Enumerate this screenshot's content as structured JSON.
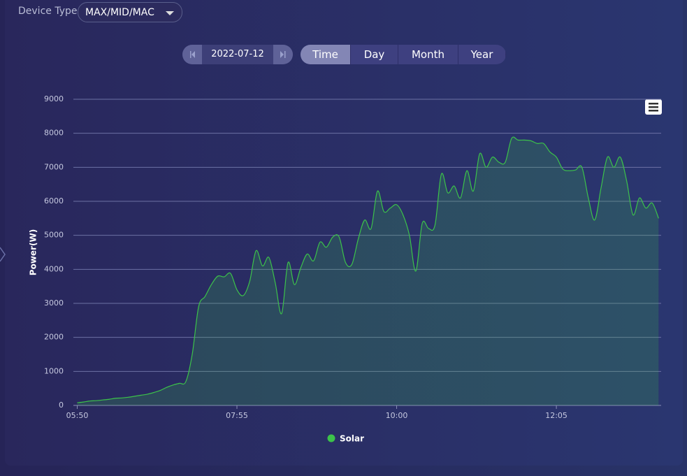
{
  "controls": {
    "device_type_label": "Device Type",
    "device_type_value": "MAX/MID/MAC",
    "date": "2022-07-12",
    "tabs": [
      "Time",
      "Day",
      "Month",
      "Year"
    ],
    "active_tab": "Time"
  },
  "chart_data": {
    "type": "area",
    "y_label": "Power(W)",
    "x": [
      "05:50",
      "05:55",
      "06:00",
      "06:05",
      "06:10",
      "06:15",
      "06:20",
      "06:25",
      "06:30",
      "06:35",
      "06:40",
      "06:45",
      "06:50",
      "06:55",
      "07:00",
      "07:05",
      "07:10",
      "07:15",
      "07:20",
      "07:25",
      "07:30",
      "07:35",
      "07:40",
      "07:45",
      "07:50",
      "07:55",
      "08:00",
      "08:05",
      "08:10",
      "08:15",
      "08:20",
      "08:25",
      "08:30",
      "08:35",
      "08:40",
      "08:45",
      "08:50",
      "08:55",
      "09:00",
      "09:05",
      "09:10",
      "09:15",
      "09:20",
      "09:25",
      "09:30",
      "09:35",
      "09:40",
      "09:45",
      "09:50",
      "09:55",
      "10:00",
      "10:05",
      "10:10",
      "10:15",
      "10:20",
      "10:25",
      "10:30",
      "10:35",
      "10:40",
      "10:45",
      "10:50",
      "10:55",
      "11:00",
      "11:05",
      "11:10",
      "11:15",
      "11:20",
      "11:25",
      "11:30",
      "11:35",
      "11:40",
      "11:45",
      "11:50",
      "11:55",
      "12:00",
      "12:05",
      "12:10",
      "12:15",
      "12:20",
      "12:25",
      "12:30",
      "12:35",
      "12:40",
      "12:45",
      "12:50",
      "12:55",
      "13:00",
      "13:05",
      "13:10",
      "13:15",
      "13:20",
      "13:25"
    ],
    "series": [
      {
        "name": "Solar",
        "color": "#3cc24a",
        "values": [
          80,
          100,
          130,
          140,
          160,
          180,
          210,
          220,
          240,
          270,
          300,
          330,
          380,
          440,
          530,
          600,
          650,
          700,
          1500,
          2900,
          3200,
          3550,
          3800,
          3780,
          3880,
          3400,
          3230,
          3650,
          4550,
          4100,
          4350,
          3600,
          2700,
          4200,
          3550,
          4050,
          4450,
          4250,
          4800,
          4650,
          4950,
          4950,
          4200,
          4150,
          4900,
          5450,
          5200,
          6300,
          5700,
          5800,
          5900,
          5600,
          5000,
          3950,
          5350,
          5200,
          5300,
          6800,
          6250,
          6450,
          6100,
          6900,
          6300,
          7400,
          7000,
          7300,
          7150,
          7150,
          7850,
          7800,
          7800,
          7780,
          7700,
          7700,
          7450,
          7300,
          6950,
          6900,
          6920,
          7000,
          6100,
          5450,
          6400,
          7300,
          7000,
          7300,
          6600,
          5600,
          6100,
          5800,
          5950,
          5500
        ]
      }
    ],
    "xlim": [
      "05:47",
      "13:27"
    ],
    "xticks": [
      "05:50",
      "07:55",
      "10:00",
      "12:05"
    ],
    "ylim": [
      0,
      9000
    ],
    "yticks": [
      0,
      1000,
      2000,
      3000,
      4000,
      5000,
      6000,
      7000,
      8000,
      9000
    ],
    "grid": true
  }
}
